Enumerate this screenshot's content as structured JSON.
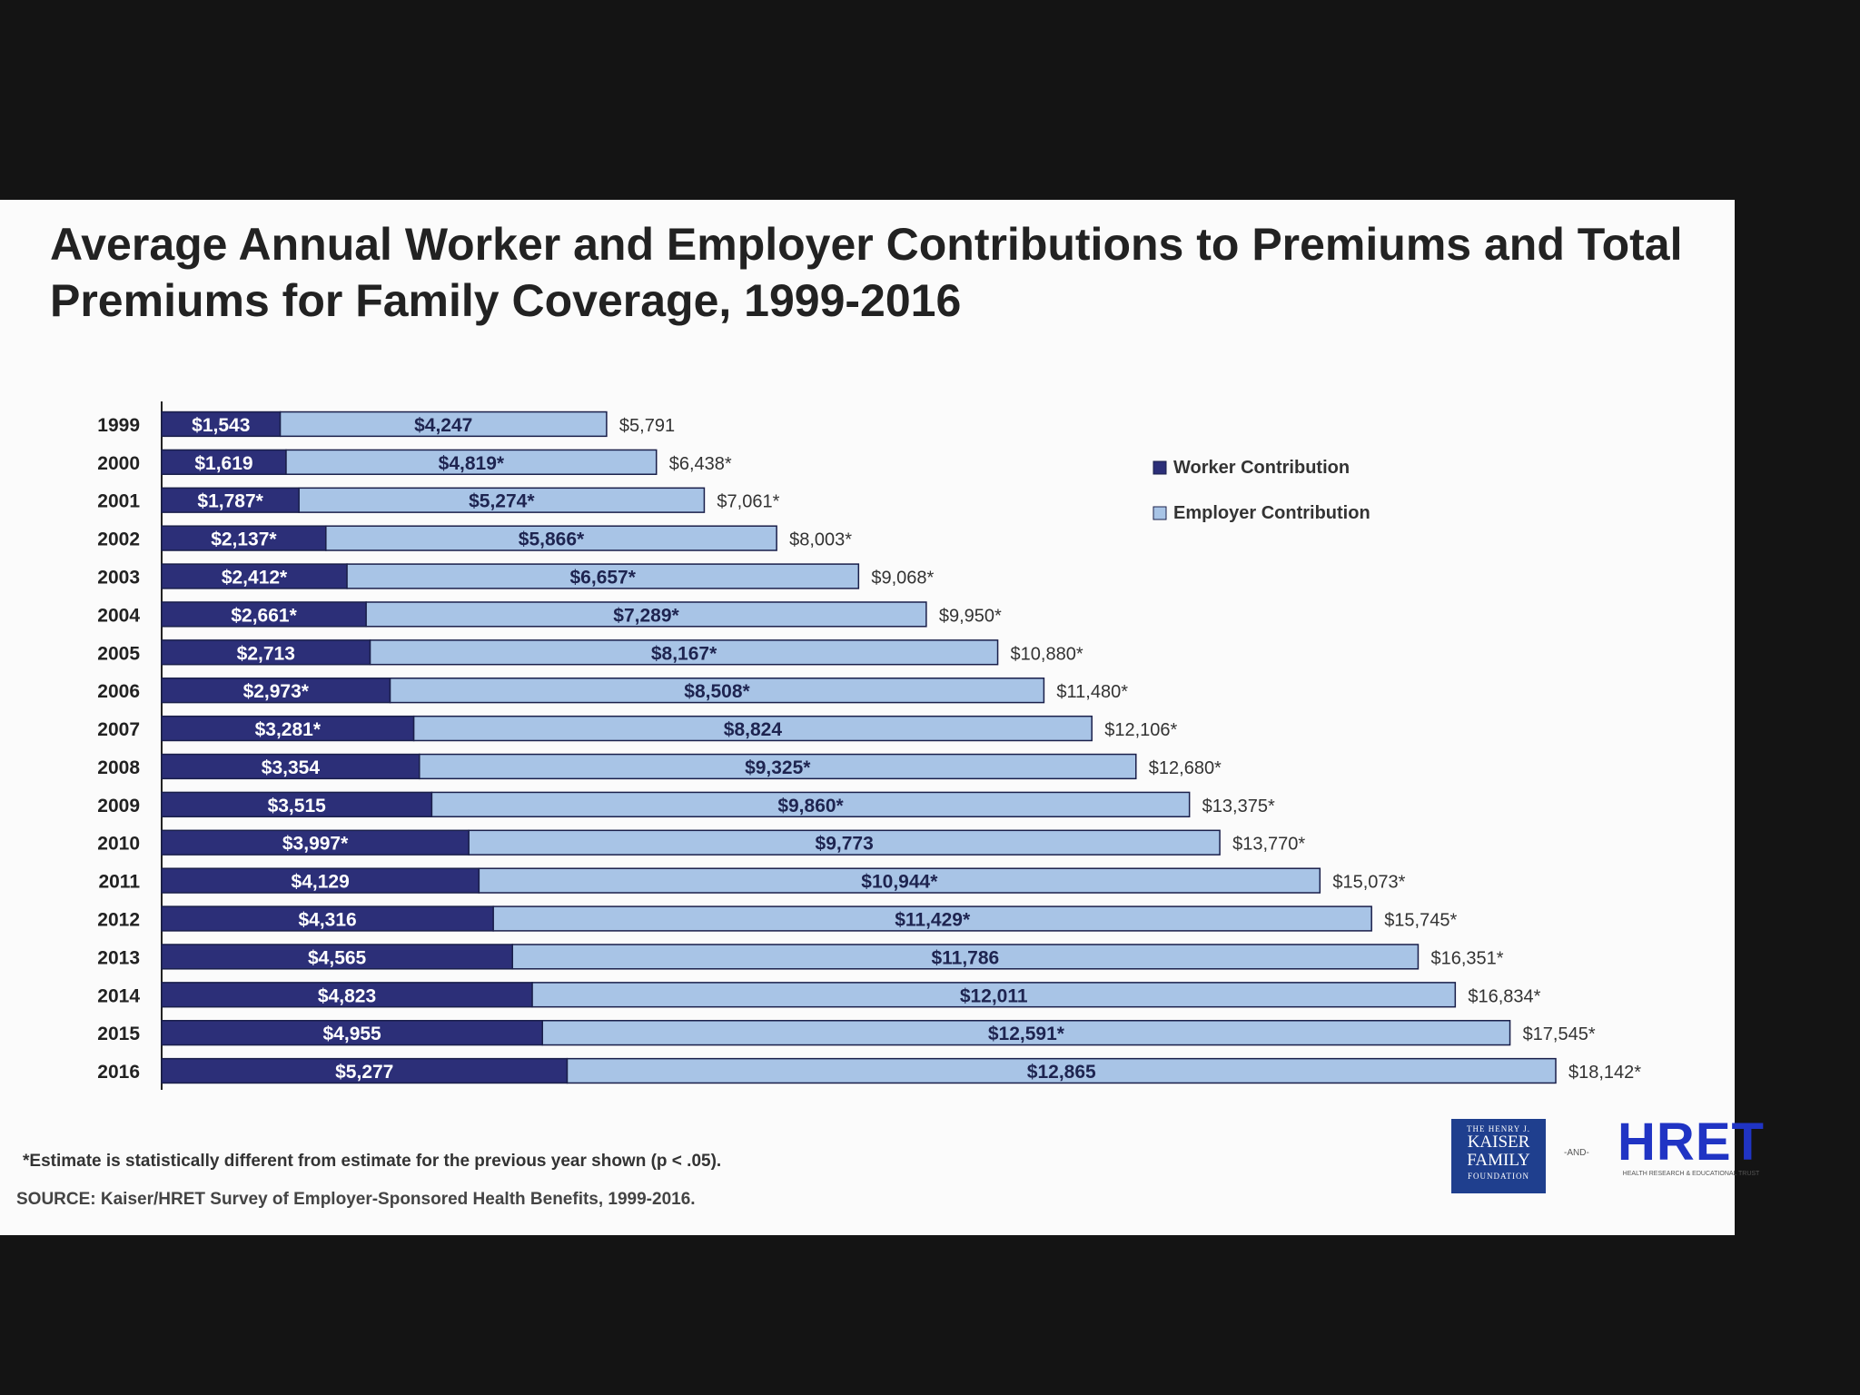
{
  "slide": {
    "title": "Average Annual Worker and Employer Contributions to Premiums and Total Premiums for Family Coverage, 1999-2016",
    "footnote": "*Estimate is statistically different from estimate for the previous year shown (p < .05).",
    "source": "SOURCE: Kaiser/HRET Survey of Employer-Sponsored Health Benefits, 1999-2016.",
    "logos": {
      "kff_small": "THE HENRY J.",
      "kff_line1": "KAISER",
      "kff_line2": "FAMILY",
      "kff_small2": "FOUNDATION",
      "and": "-AND-",
      "hret_word": "HRET",
      "hret_tag": "HEALTH RESEARCH & EDUCATIONAL TRUST"
    }
  },
  "colors": {
    "worker": "#2c2f78",
    "employer": "#a8c4e6",
    "outline": "#1a1f4a",
    "label": "#222222"
  },
  "chart_data": {
    "type": "bar",
    "orientation": "horizontal",
    "stacked": true,
    "categories": [
      "1999",
      "2000",
      "2001",
      "2002",
      "2003",
      "2004",
      "2005",
      "2006",
      "2007",
      "2008",
      "2009",
      "2010",
      "2011",
      "2012",
      "2013",
      "2014",
      "2015",
      "2016"
    ],
    "series": [
      {
        "name": "Worker Contribution",
        "values": [
          1543,
          1619,
          1787,
          2137,
          2412,
          2661,
          2713,
          2973,
          3281,
          3354,
          3515,
          3997,
          4129,
          4316,
          4565,
          4823,
          4955,
          5277
        ],
        "labels": [
          "$1,543",
          "$1,619",
          "$1,787*",
          "$2,137*",
          "$2,412*",
          "$2,661*",
          "$2,713",
          "$2,973*",
          "$3,281*",
          "$3,354",
          "$3,515",
          "$3,997*",
          "$4,129",
          "$4,316",
          "$4,565",
          "$4,823",
          "$4,955",
          "$5,277"
        ]
      },
      {
        "name": "Employer Contribution",
        "values": [
          4247,
          4819,
          5274,
          5866,
          6657,
          7289,
          8167,
          8508,
          8824,
          9325,
          9860,
          9773,
          10944,
          11429,
          11786,
          12011,
          12591,
          12865
        ],
        "labels": [
          "$4,247",
          "$4,819*",
          "$5,274*",
          "$5,866*",
          "$6,657*",
          "$7,289*",
          "$8,167*",
          "$8,508*",
          "$8,824",
          "$9,325*",
          "$9,860*",
          "$9,773",
          "$10,944*",
          "$11,429*",
          "$11,786",
          "$12,011",
          "$12,591*",
          "$12,865"
        ]
      }
    ],
    "totals": [
      5791,
      6438,
      7061,
      8003,
      9068,
      9950,
      10880,
      11480,
      12106,
      12680,
      13375,
      13770,
      15073,
      15745,
      16351,
      16834,
      17545,
      18142
    ],
    "total_labels": [
      "$5,791",
      "$6,438*",
      "$7,061*",
      "$8,003*",
      "$9,068*",
      "$9,950*",
      "$10,880*",
      "$11,480*",
      "$12,106*",
      "$12,680*",
      "$13,375*",
      "$13,770*",
      "$15,073*",
      "$15,745*",
      "$16,351*",
      "$16,834*",
      "$17,545*",
      "$18,142*"
    ],
    "xlim": [
      0,
      18142
    ],
    "legend_position": "top-right",
    "grid": false
  }
}
